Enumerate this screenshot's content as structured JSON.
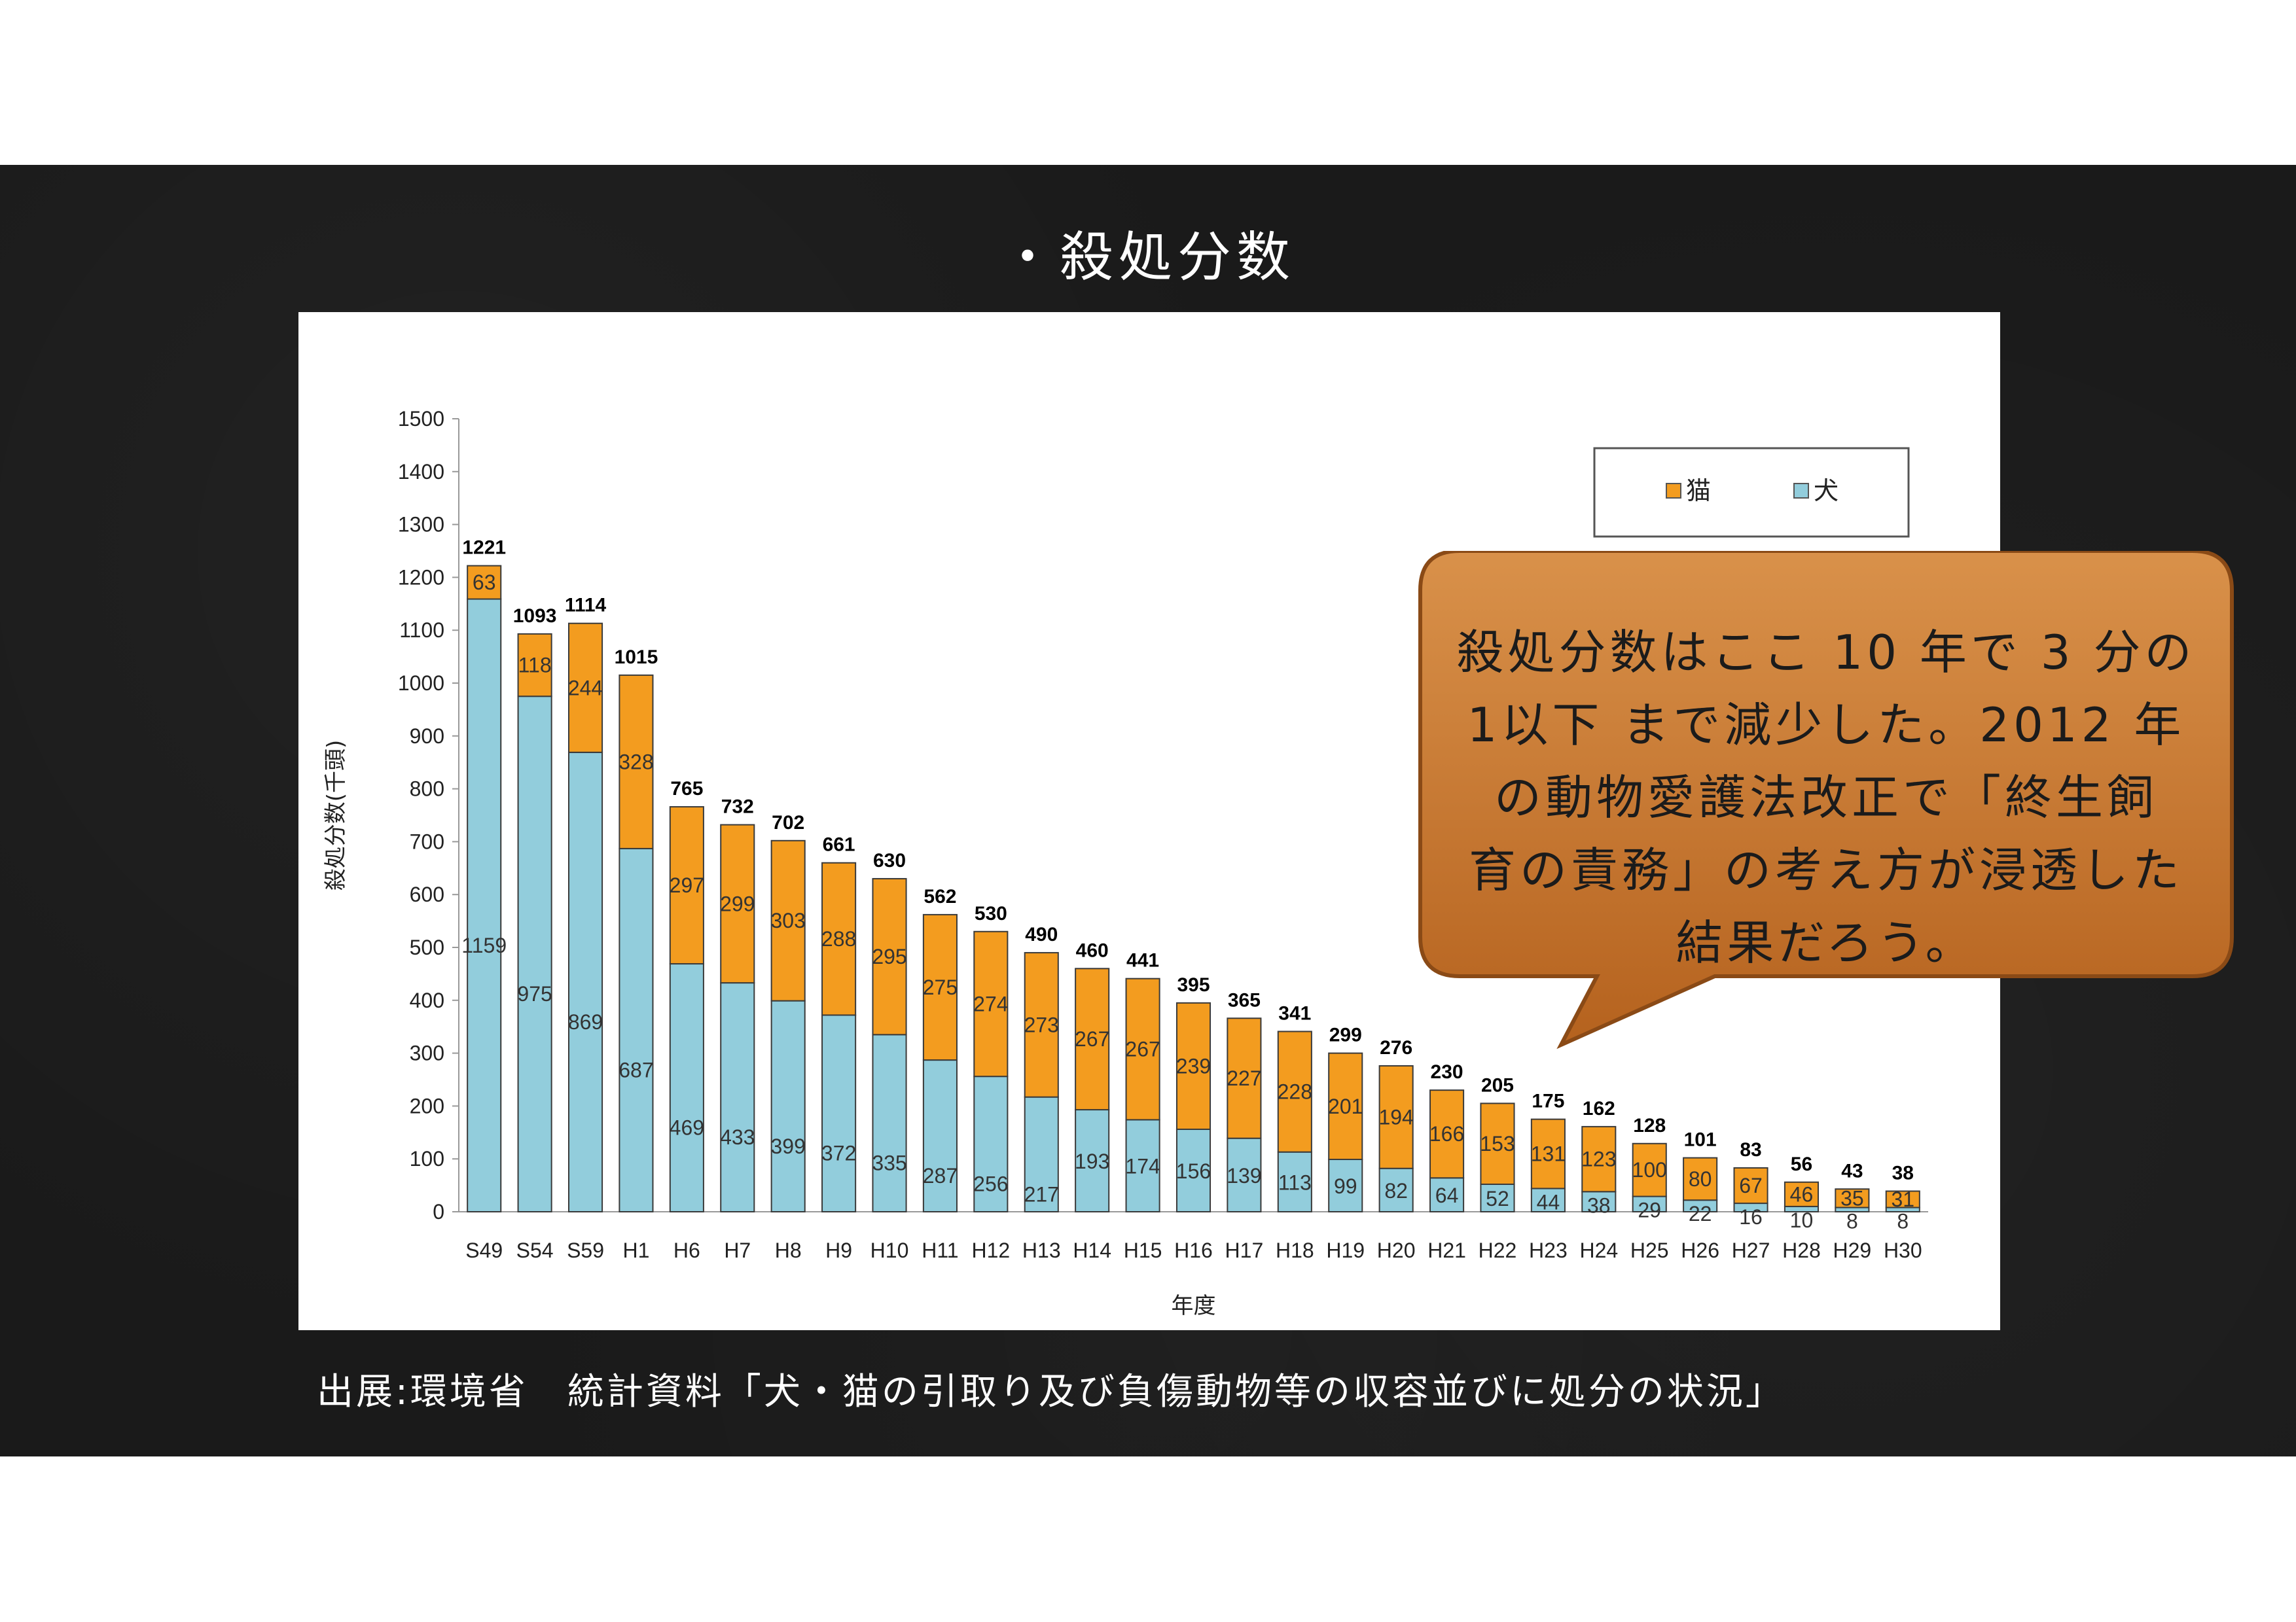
{
  "slide": {
    "title": "・殺処分数",
    "source": "出展:環境省　統計資料「犬・猫の引取り及び負傷動物等の収容並びに処分の状況」",
    "callout_lines": [
      "殺処分数はここ 10 年で 3 分の",
      "1以下 まで減少した。2012 年",
      "の動物愛護法改正で「終生飼",
      "育の責務」の考え方が浸透した",
      "結果だろう。"
    ],
    "callout_color": "#c8742c"
  },
  "chart_data": {
    "type": "bar",
    "stacked": true,
    "xlabel": "年度",
    "ylabel": "殺処分数(千頭)",
    "ylim": [
      0,
      1500
    ],
    "ytick_step": 100,
    "legend_position": "top-right",
    "categories": [
      "S49",
      "S54",
      "S59",
      "H1",
      "H6",
      "H7",
      "H8",
      "H9",
      "H10",
      "H11",
      "H12",
      "H13",
      "H14",
      "H15",
      "H16",
      "H17",
      "H18",
      "H19",
      "H20",
      "H21",
      "H22",
      "H23",
      "H24",
      "H25",
      "H26",
      "H27",
      "H28",
      "H29",
      "H30"
    ],
    "series": [
      {
        "name": "犬",
        "color": "#92cddc",
        "values": [
          1159,
          975,
          869,
          687,
          469,
          433,
          399,
          372,
          335,
          287,
          256,
          217,
          193,
          174,
          156,
          139,
          113,
          99,
          82,
          64,
          52,
          44,
          38,
          29,
          22,
          16,
          10,
          8,
          8
        ]
      },
      {
        "name": "猫",
        "color": "#f39c1f",
        "values": [
          63,
          118,
          244,
          328,
          297,
          299,
          303,
          288,
          295,
          275,
          274,
          273,
          267,
          267,
          239,
          227,
          228,
          201,
          194,
          166,
          153,
          131,
          123,
          100,
          80,
          67,
          46,
          35,
          31
        ]
      }
    ],
    "totals": [
      1221,
      1093,
      1114,
      1015,
      765,
      732,
      702,
      661,
      630,
      562,
      530,
      490,
      460,
      441,
      395,
      365,
      341,
      299,
      276,
      230,
      205,
      175,
      162,
      128,
      101,
      83,
      56,
      43,
      38
    ]
  }
}
